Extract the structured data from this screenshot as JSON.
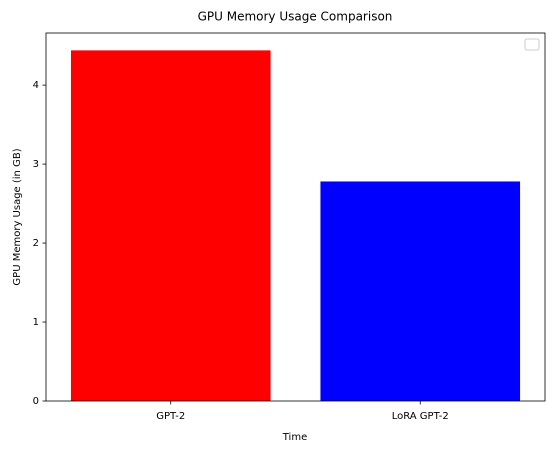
{
  "chart_data": {
    "type": "bar",
    "title": "GPU Memory Usage Comparison",
    "x_label": "Time",
    "y_label": "GPU Memory Usage (in GB)",
    "categories": [
      "GPT-2",
      "LoRA GPT-2"
    ],
    "values": [
      4.44,
      2.78
    ],
    "colors": [
      "red",
      "blue"
    ],
    "ylim": [
      0,
      4.66
    ],
    "yticks": [
      0,
      1,
      2,
      3,
      4
    ],
    "grid": false
  }
}
